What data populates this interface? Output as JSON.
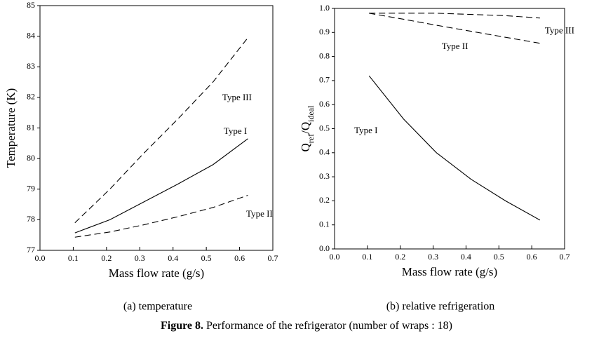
{
  "chart_data": [
    {
      "type": "line",
      "xlabel": "Mass flow rate (g/s)",
      "ylabel": [
        "Temperature (K)"
      ],
      "caption": "(a) temperature",
      "xlim": [
        0,
        0.7
      ],
      "xticks": [
        {
          "value": 0,
          "label": "0.0"
        },
        0.1,
        0.2,
        0.3,
        0.4,
        0.5,
        0.6,
        0.7
      ],
      "ylim": [
        77,
        85
      ],
      "yticks": [
        77,
        78,
        79,
        80,
        81,
        82,
        83,
        84,
        85
      ],
      "x": [
        0.105,
        0.21,
        0.31,
        0.415,
        0.52,
        0.625
      ],
      "series": [
        {
          "name": "Type I",
          "color": "#000000",
          "style": "solid",
          "values": [
            77.57,
            78.0,
            78.57,
            79.17,
            79.8,
            80.65
          ]
        },
        {
          "name": "Type II",
          "color": "#000000",
          "style": "dashed",
          "values": [
            77.43,
            77.6,
            77.83,
            78.1,
            78.4,
            78.8
          ]
        },
        {
          "name": "Type III",
          "color": "#000000",
          "style": "dashed",
          "values": [
            77.9,
            79.0,
            80.15,
            81.3,
            82.5,
            83.95
          ]
        }
      ],
      "annotations": [
        {
          "text": "Type III",
          "x": 0.548,
          "y": 81.97
        },
        {
          "text": "Type I",
          "x": 0.552,
          "y": 80.87
        },
        {
          "text": "Type II",
          "x": 0.62,
          "y": 78.17
        }
      ]
    },
    {
      "type": "line",
      "xlabel": "Mass flow rate (g/s)",
      "ylabel": [
        "Q",
        "ref",
        "/Q",
        "ideal"
      ],
      "caption": "(b) relative refrigeration",
      "xlim": [
        0,
        0.7
      ],
      "xticks": [
        {
          "value": 0,
          "label": "0.0"
        },
        0.1,
        0.2,
        0.3,
        0.4,
        0.5,
        0.6,
        0.7
      ],
      "ylim": [
        0,
        1
      ],
      "yticks": [
        {
          "value": 0,
          "label": "0.0"
        },
        0.1,
        0.2,
        0.3,
        0.4,
        0.5,
        0.6,
        0.7,
        0.8,
        0.9,
        {
          "value": 1,
          "label": "1.0"
        }
      ],
      "x": [
        0.105,
        0.21,
        0.31,
        0.415,
        0.52,
        0.625
      ],
      "series": [
        {
          "name": "Type I",
          "color": "#000000",
          "style": "solid",
          "values": [
            0.72,
            0.54,
            0.4,
            0.29,
            0.2,
            0.12
          ]
        },
        {
          "name": "Type II",
          "color": "#000000",
          "style": "dashed",
          "values": [
            0.98,
            0.955,
            0.93,
            0.905,
            0.88,
            0.855
          ]
        },
        {
          "name": "Type III",
          "color": "#000000",
          "style": "dashed",
          "values": [
            0.98,
            0.98,
            0.98,
            0.975,
            0.97,
            0.96
          ]
        }
      ],
      "annotations": [
        {
          "text": "Type III",
          "x": 0.64,
          "y": 0.905
        },
        {
          "text": "Type II",
          "x": 0.326,
          "y": 0.84
        },
        {
          "text": "Type I",
          "x": 0.06,
          "y": 0.49
        }
      ]
    }
  ],
  "figure_caption": {
    "label": "Figure 8.",
    "text": "Performance of the refrigerator (number of wraps : 18)"
  }
}
